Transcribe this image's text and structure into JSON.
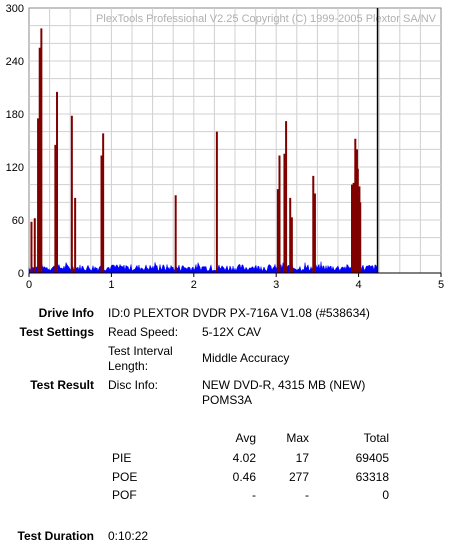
{
  "chart_data": {
    "type": "bar",
    "watermark": "PlexTools Professional V2.25 Copyright (C) 1999-2005 Plextor SA/NV",
    "xlim": [
      0,
      5
    ],
    "ylim": [
      0,
      300
    ],
    "x_ticks": [
      "0",
      "1",
      "2",
      "3",
      "4",
      "5"
    ],
    "y_ticks": [
      "0",
      "60",
      "120",
      "180",
      "240",
      "300"
    ],
    "grid": true,
    "end_marker_x": 4.23,
    "series": [
      {
        "color": "#800000",
        "points": [
          [
            0.03,
            58
          ],
          [
            0.07,
            62
          ],
          [
            0.11,
            175
          ],
          [
            0.13,
            255
          ],
          [
            0.15,
            277
          ],
          [
            0.32,
            145
          ],
          [
            0.34,
            205
          ],
          [
            0.52,
            178
          ],
          [
            0.56,
            85
          ],
          [
            0.88,
            133
          ],
          [
            0.9,
            158
          ],
          [
            1.78,
            88
          ],
          [
            2.28,
            160
          ],
          [
            3.02,
            95
          ],
          [
            3.04,
            133
          ],
          [
            3.1,
            135
          ],
          [
            3.12,
            172
          ],
          [
            3.17,
            85
          ],
          [
            3.19,
            63
          ],
          [
            3.45,
            110
          ],
          [
            3.47,
            90
          ],
          [
            3.92,
            100
          ],
          [
            3.94,
            102
          ],
          [
            3.96,
            152
          ],
          [
            3.97,
            130
          ],
          [
            3.98,
            140
          ],
          [
            3.99,
            118
          ],
          [
            4.0,
            90
          ],
          [
            4.01,
            98
          ],
          [
            4.02,
            80
          ]
        ]
      },
      {
        "color": "#0000ff",
        "baseline_max": 12,
        "end": 4.23
      }
    ]
  },
  "info": {
    "drive_label": "Drive Info",
    "drive_value": "ID:0 PLEXTOR DVDR PX-716A V1.08 (#538634)",
    "settings_label": "Test Settings",
    "read_speed_label": "Read Speed:",
    "read_speed_value": "5-12X CAV",
    "interval_label_1": "Test Interval",
    "interval_label_2": "Length:",
    "interval_value": "Middle Accuracy",
    "result_label": "Test Result",
    "disc_info_label": "Disc Info:",
    "disc_info_value_1": "NEW DVD-R, 4315 MB (NEW)",
    "disc_info_value_2": "POMS3A",
    "duration_label": "Test Duration",
    "duration_value": "0:10:22"
  },
  "stats": {
    "headers": [
      "Avg",
      "Max",
      "Total"
    ],
    "rows": [
      {
        "name": "PIE",
        "avg": "4.02",
        "max": "17",
        "total": "69405"
      },
      {
        "name": "POE",
        "avg": "0.46",
        "max": "277",
        "total": "63318"
      },
      {
        "name": "POF",
        "avg": "-",
        "max": "-",
        "total": "0"
      }
    ]
  }
}
